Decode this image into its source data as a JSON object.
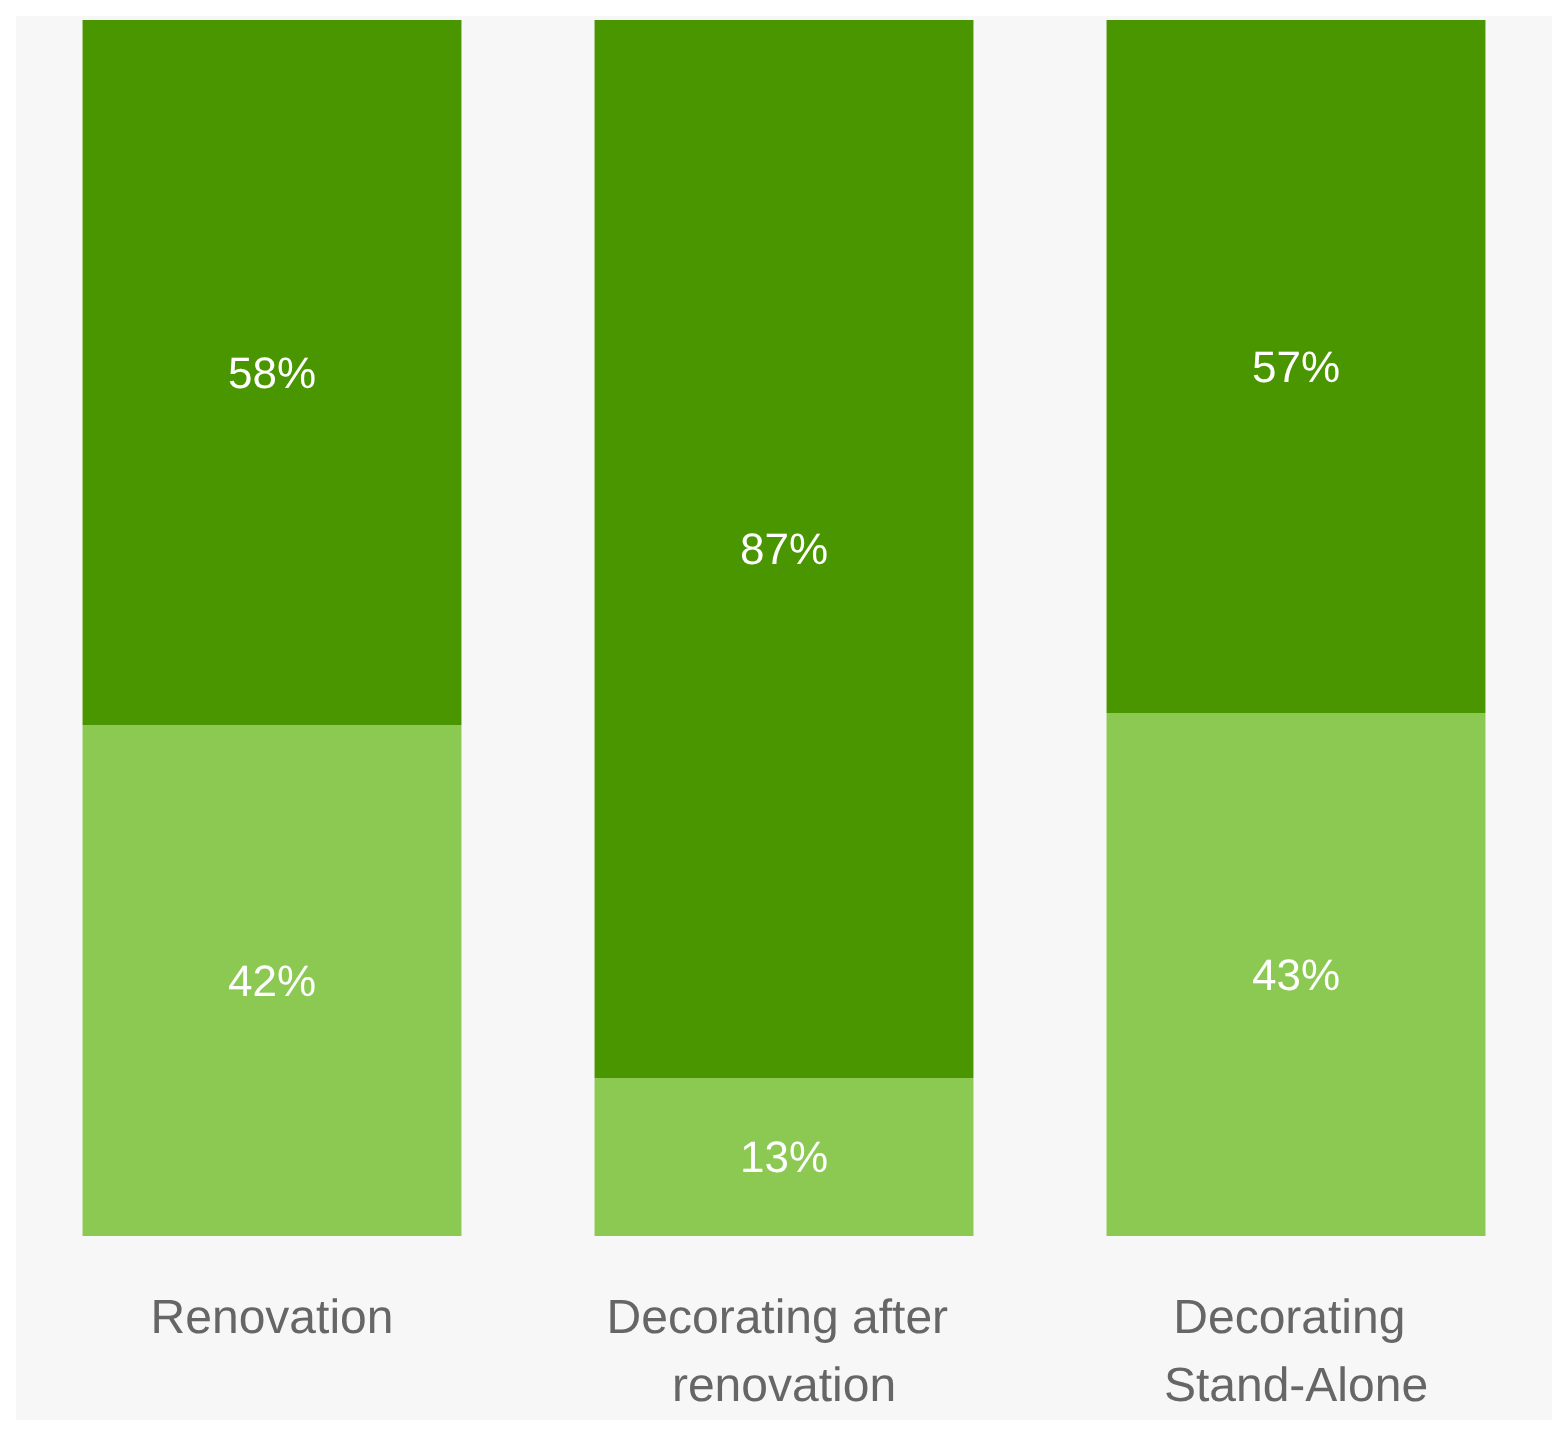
{
  "chart_data": {
    "type": "bar",
    "stacked": true,
    "categories": [
      "Renovation",
      "Decorating after renovation",
      "Decorating Stand-Alone"
    ],
    "series": [
      {
        "color": "#8bc953",
        "values": [
          42,
          13,
          43
        ],
        "value_labels": [
          "42%",
          "13%",
          "43%"
        ]
      },
      {
        "color": "#4a9600",
        "values": [
          58,
          87,
          57
        ],
        "value_labels": [
          "58%",
          "87%",
          "57%"
        ]
      }
    ]
  }
}
